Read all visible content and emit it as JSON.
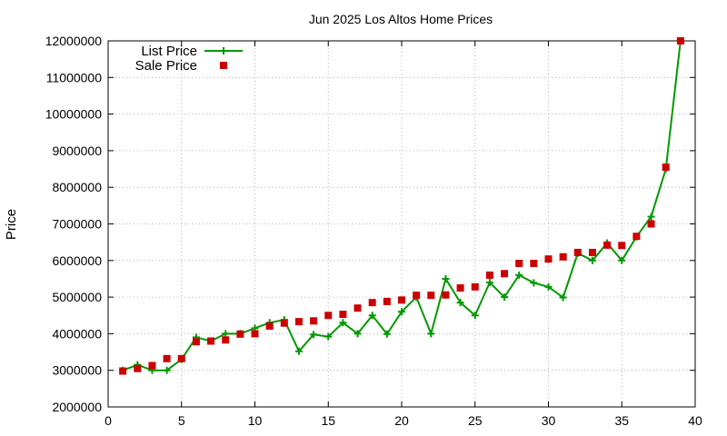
{
  "chart_data": {
    "type": "line",
    "title": "Jun 2025 Los Altos Home Prices",
    "xlabel": "",
    "ylabel": "Price",
    "xlim": [
      0,
      40
    ],
    "ylim": [
      2000000,
      12000000
    ],
    "x_ticks": [
      0,
      5,
      10,
      15,
      20,
      25,
      30,
      35,
      40
    ],
    "y_ticks": [
      2000000,
      3000000,
      4000000,
      5000000,
      6000000,
      7000000,
      8000000,
      9000000,
      10000000,
      11000000,
      12000000
    ],
    "x_tick_labels": [
      "0",
      "5",
      "10",
      "15",
      "20",
      "25",
      "30",
      "35",
      "40"
    ],
    "y_tick_labels": [
      "2000000",
      "3000000",
      "4000000",
      "5000000",
      "6000000",
      "7000000",
      "8000000",
      "9000000",
      "10000000",
      "11000000",
      "12000000"
    ],
    "grid": true,
    "legend_position": "top-left",
    "series": [
      {
        "name": "List Price",
        "style": "line-plus",
        "color": "#009900",
        "x": [
          1,
          2,
          3,
          4,
          5,
          6,
          7,
          8,
          9,
          10,
          11,
          12,
          13,
          14,
          15,
          16,
          17,
          18,
          19,
          20,
          21,
          22,
          23,
          24,
          25,
          26,
          27,
          28,
          29,
          30,
          31,
          32,
          33,
          34,
          35,
          36,
          37,
          38,
          39
        ],
        "y": [
          3000000,
          3150000,
          3000000,
          3000000,
          3300000,
          3900000,
          3800000,
          4000000,
          4000000,
          4150000,
          4300000,
          4380000,
          3520000,
          3980000,
          3920000,
          4300000,
          4000000,
          4500000,
          3990000,
          4600000,
          5000000,
          4000000,
          5500000,
          4850000,
          4500000,
          5400000,
          5000000,
          5600000,
          5390000,
          5280000,
          4990000,
          6200000,
          6000000,
          6480000,
          6000000,
          6650000,
          7200000,
          8500000,
          12000000
        ]
      },
      {
        "name": "Sale Price",
        "style": "square",
        "color": "#cc0000",
        "x": [
          1,
          2,
          3,
          4,
          5,
          6,
          7,
          8,
          9,
          10,
          11,
          12,
          13,
          14,
          15,
          16,
          17,
          18,
          19,
          20,
          21,
          22,
          23,
          24,
          25,
          26,
          27,
          28,
          29,
          30,
          31,
          32,
          33,
          34,
          35,
          36,
          37,
          38,
          39
        ],
        "y": [
          2980000,
          3050000,
          3130000,
          3320000,
          3320000,
          3780000,
          3800000,
          3830000,
          3990000,
          4000000,
          4210000,
          4290000,
          4330000,
          4350000,
          4500000,
          4530000,
          4700000,
          4850000,
          4880000,
          4920000,
          5050000,
          5050000,
          5060000,
          5250000,
          5280000,
          5600000,
          5640000,
          5920000,
          5920000,
          6040000,
          6100000,
          6220000,
          6220000,
          6420000,
          6410000,
          6660000,
          7000000,
          8550000,
          12000000
        ]
      }
    ]
  }
}
